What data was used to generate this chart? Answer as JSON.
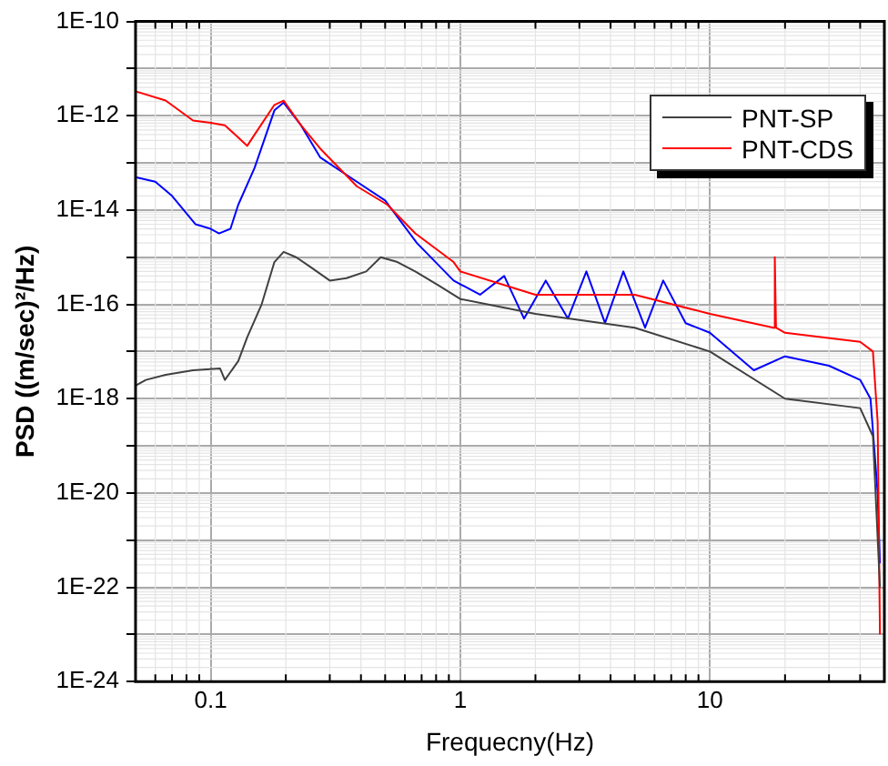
{
  "chart_data": {
    "type": "line",
    "xlabel": "Frequecny(Hz)",
    "ylabel": "PSD ((m/sec)²/Hz)",
    "log": "xy",
    "grid": true,
    "legend": "top right",
    "marker": "none",
    "line_style": "solid",
    "xlim": [
      0.05,
      50
    ],
    "xticks": [
      0.1,
      1,
      10
    ],
    "ylim": [
      1e-24,
      1e-10
    ],
    "yticks": [
      {
        "value": 1e-24,
        "label": "1E-24"
      },
      {
        "value": 1e-23,
        "label": null
      },
      {
        "value": 1e-22,
        "label": "1E-22"
      },
      {
        "value": 1e-21,
        "label": null
      },
      {
        "value": 1e-20,
        "label": "1E-20"
      },
      {
        "value": 1e-19,
        "label": null
      },
      {
        "value": 1e-18,
        "label": "1E-18"
      },
      {
        "value": 1e-17,
        "label": null
      },
      {
        "value": 1e-16,
        "label": "1E-16"
      },
      {
        "value": 1e-15,
        "label": null
      },
      {
        "value": 1e-14,
        "label": "1E-14"
      },
      {
        "value": 1e-13,
        "label": null
      },
      {
        "value": 1e-12,
        "label": "1E-12"
      },
      {
        "value": 1e-11,
        "label": null
      },
      {
        "value": 1e-10,
        "label": "1E-10"
      }
    ],
    "series": [
      {
        "name": "PNT-SP",
        "color": "#404040",
        "x": [
          0.05,
          0.055,
          0.066,
          0.085,
          0.109,
          0.114,
          0.129,
          0.14,
          0.16,
          0.18,
          0.196,
          0.22,
          0.25,
          0.3,
          0.35,
          0.42,
          0.48,
          0.56,
          0.66,
          0.82,
          1,
          2,
          5,
          10,
          20,
          40,
          45,
          48
        ],
        "values": [
          1.9e-18,
          2.5e-18,
          3.2e-18,
          4e-18,
          4.4e-18,
          2.5e-18,
          6.3e-18,
          2e-17,
          1e-16,
          7.9e-16,
          1.3e-15,
          1e-15,
          6.3e-16,
          3.2e-16,
          3.6e-16,
          5e-16,
          1e-15,
          7.9e-16,
          5e-16,
          2.5e-16,
          1.3e-16,
          6.3e-17,
          3.2e-17,
          1e-17,
          1e-18,
          6.3e-19,
          1.6e-19,
          1e-22
        ]
      },
      {
        "name": "PNT-CDS",
        "color": "#ff0000",
        "x": [
          0.05,
          0.066,
          0.085,
          0.1,
          0.114,
          0.14,
          0.15,
          0.18,
          0.196,
          0.23,
          0.275,
          0.385,
          0.51,
          0.66,
          0.94,
          1,
          2,
          5,
          10,
          18,
          18.2,
          18.4,
          20,
          40,
          45,
          47,
          48
        ],
        "values": [
          3.3e-12,
          2.1e-12,
          7.9e-13,
          7.1e-13,
          6.3e-13,
          2.3e-13,
          4e-13,
          1.7e-12,
          2.1e-12,
          6.3e-13,
          2e-13,
          3.2e-14,
          1.3e-14,
          3.2e-15,
          7.9e-16,
          5e-16,
          1.6e-16,
          1.6e-16,
          6.3e-17,
          3.2e-17,
          1e-15,
          3.2e-17,
          2.5e-17,
          1.6e-17,
          1e-17,
          3.2e-19,
          1e-23
        ]
      },
      {
        "color": "#0000ff",
        "x": [
          0.05,
          0.06,
          0.07,
          0.087,
          0.1,
          0.108,
          0.12,
          0.129,
          0.15,
          0.18,
          0.196,
          0.23,
          0.275,
          0.385,
          0.5,
          0.67,
          0.94,
          1.2,
          1.5,
          1.8,
          2.2,
          2.7,
          3.2,
          3.8,
          4.5,
          5.5,
          6.5,
          8,
          10,
          15,
          20,
          30,
          40,
          44,
          47,
          48
        ],
        "values": [
          5e-14,
          4e-14,
          2e-14,
          5e-15,
          4e-15,
          3.2e-15,
          4e-15,
          1.3e-14,
          7.9e-14,
          1.3e-12,
          1.9e-12,
          6.3e-13,
          1.3e-13,
          4e-14,
          1.6e-14,
          2e-15,
          3.2e-16,
          1.6e-16,
          4e-16,
          5e-17,
          3.2e-16,
          5e-17,
          5e-16,
          4e-17,
          5e-16,
          3.2e-17,
          3.2e-16,
          4e-17,
          2.5e-17,
          4e-18,
          7.9e-18,
          5e-18,
          2.5e-18,
          1e-18,
          1e-20,
          3.2e-22
        ]
      }
    ]
  }
}
